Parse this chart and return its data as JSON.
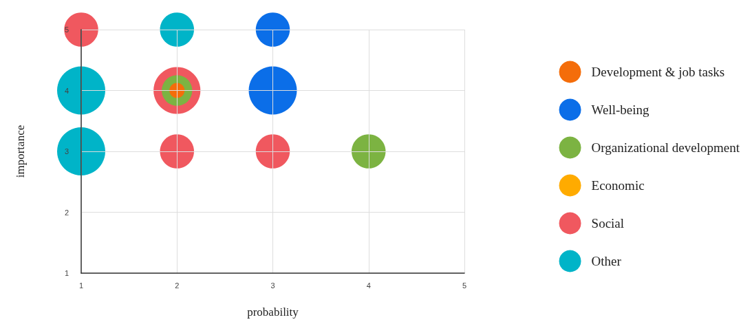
{
  "chart_data": {
    "type": "bubble",
    "xlabel": "probability",
    "ylabel": "importance",
    "xlim": [
      1,
      5
    ],
    "xticks": [
      1,
      2,
      3,
      4,
      5
    ],
    "ylim": [
      1,
      5
    ],
    "yticks": [
      1,
      2,
      3,
      4,
      5
    ],
    "grid": true,
    "legend": "right",
    "marker": "circle",
    "series": [
      {
        "name": "Development & job tasks",
        "color": "#f46d0a",
        "x": [
          2
        ],
        "values": [
          4
        ],
        "sizes": [
          0.1
        ]
      },
      {
        "name": "Well-being",
        "color": "#0b6ee8",
        "x": [
          3,
          3
        ],
        "values": [
          5,
          4
        ],
        "sizes": [
          0.5,
          1
        ]
      },
      {
        "name": "Organizational development",
        "color": "#7cb342",
        "x": [
          2,
          4
        ],
        "values": [
          4,
          3
        ],
        "sizes": [
          0.4,
          0.5
        ]
      },
      {
        "name": "Economic",
        "color": "#ffab00"
      },
      {
        "name": "Social",
        "color": "#f0585f",
        "x": [
          1,
          2,
          2,
          3
        ],
        "values": [
          5,
          4,
          3,
          3
        ],
        "sizes": [
          0.5,
          0.95,
          0.5,
          0.5
        ]
      },
      {
        "name": "Other",
        "color": "#00b4c8",
        "x": [
          2,
          1,
          1
        ],
        "values": [
          5,
          4,
          3
        ],
        "sizes": [
          0.5,
          1,
          1
        ]
      }
    ]
  }
}
